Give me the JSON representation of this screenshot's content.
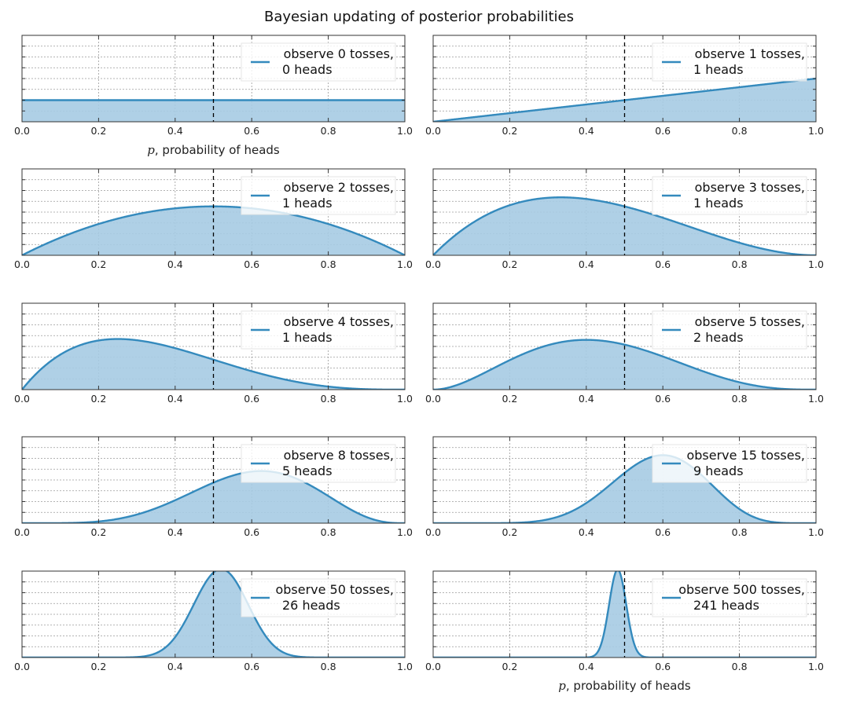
{
  "figure": {
    "title": "Bayesian updating of posterior probabilities",
    "xlabel_var": "p",
    "xlabel_text": ", probability of heads",
    "colors": {
      "line": "#348ABD",
      "fill": "#A6CBE3",
      "vline": "#000000",
      "grid": "#9a9a9a",
      "frame": "#333333"
    }
  },
  "chart_data": [
    {
      "type": "area",
      "distribution": "beta-posterior",
      "tosses": 0,
      "heads": 0,
      "legend": [
        "observe 0 tosses,",
        "0 heads"
      ],
      "xlabel": "p, probability of heads",
      "xlim": [
        0.0,
        1.0
      ],
      "xticks": [
        "0.0",
        "0.2",
        "0.4",
        "0.6",
        "0.8",
        "1.0"
      ],
      "vline_x": 0.5,
      "ylim": [
        0,
        4.0
      ]
    },
    {
      "type": "area",
      "distribution": "beta-posterior",
      "tosses": 1,
      "heads": 1,
      "legend": [
        "observe 1 tosses,",
        "1 heads"
      ],
      "xlabel": "",
      "xlim": [
        0.0,
        1.0
      ],
      "xticks": [
        "0.0",
        "0.2",
        "0.4",
        "0.6",
        "0.8",
        "1.0"
      ],
      "vline_x": 0.5,
      "ylim": [
        0,
        4.0
      ]
    },
    {
      "type": "area",
      "distribution": "beta-posterior",
      "tosses": 2,
      "heads": 1,
      "legend": [
        "observe 2 tosses,",
        "1 heads"
      ],
      "xlabel": "",
      "xlim": [
        0.0,
        1.0
      ],
      "xticks": [
        "0.0",
        "0.2",
        "0.4",
        "0.6",
        "0.8",
        "1.0"
      ],
      "vline_x": 0.5,
      "ylim": [
        0,
        2.65
      ]
    },
    {
      "type": "area",
      "distribution": "beta-posterior",
      "tosses": 3,
      "heads": 1,
      "legend": [
        "observe 3 tosses,",
        "1 heads"
      ],
      "xlabel": "",
      "xlim": [
        0.0,
        1.0
      ],
      "xticks": [
        "0.0",
        "0.2",
        "0.4",
        "0.6",
        "0.8",
        "1.0"
      ],
      "vline_x": 0.5,
      "ylim": [
        0,
        2.65
      ]
    },
    {
      "type": "area",
      "distribution": "beta-posterior",
      "tosses": 4,
      "heads": 1,
      "legend": [
        "observe 4 tosses,",
        "1 heads"
      ],
      "xlabel": "",
      "xlim": [
        0.0,
        1.0
      ],
      "xticks": [
        "0.0",
        "0.2",
        "0.4",
        "0.6",
        "0.8",
        "1.0"
      ],
      "vline_x": 0.5,
      "ylim": [
        0,
        3.6
      ]
    },
    {
      "type": "area",
      "distribution": "beta-posterior",
      "tosses": 5,
      "heads": 2,
      "legend": [
        "observe 5 tosses,",
        "2 heads"
      ],
      "xlabel": "",
      "xlim": [
        0.0,
        1.0
      ],
      "xticks": [
        "0.0",
        "0.2",
        "0.4",
        "0.6",
        "0.8",
        "1.0"
      ],
      "vline_x": 0.5,
      "ylim": [
        0,
        3.6
      ]
    },
    {
      "type": "area",
      "distribution": "beta-posterior",
      "tosses": 8,
      "heads": 5,
      "legend": [
        "observe 8 tosses,",
        "5 heads"
      ],
      "xlabel": "",
      "xlim": [
        0.0,
        1.0
      ],
      "xticks": [
        "0.0",
        "0.2",
        "0.4",
        "0.6",
        "0.8",
        "1.0"
      ],
      "vline_x": 0.5,
      "ylim": [
        0,
        4.2
      ]
    },
    {
      "type": "area",
      "distribution": "beta-posterior",
      "tosses": 15,
      "heads": 9,
      "legend": [
        "observe 15 tosses,",
        "9 heads"
      ],
      "xlabel": "",
      "xlim": [
        0.0,
        1.0
      ],
      "xticks": [
        "0.0",
        "0.2",
        "0.4",
        "0.6",
        "0.8",
        "1.0"
      ],
      "vline_x": 0.5,
      "ylim": [
        0,
        4.2
      ]
    },
    {
      "type": "area",
      "distribution": "beta-posterior",
      "tosses": 50,
      "heads": 26,
      "legend": [
        "observe 50 tosses,",
        "26 heads"
      ],
      "xlabel": "",
      "xlim": [
        0.0,
        1.0
      ],
      "xticks": [
        "0.0",
        "0.2",
        "0.4",
        "0.6",
        "0.8",
        "1.0"
      ],
      "vline_x": 0.5,
      "ylim": [
        0,
        5.6
      ]
    },
    {
      "type": "area",
      "distribution": "beta-posterior",
      "tosses": 500,
      "heads": 241,
      "legend": [
        "observe 500 tosses,",
        "241 heads"
      ],
      "xlabel": "p, probability of heads",
      "xlim": [
        0.0,
        1.0
      ],
      "xticks": [
        "0.0",
        "0.2",
        "0.4",
        "0.6",
        "0.8",
        "1.0"
      ],
      "vline_x": 0.5,
      "ylim": [
        0,
        17.6
      ]
    }
  ]
}
